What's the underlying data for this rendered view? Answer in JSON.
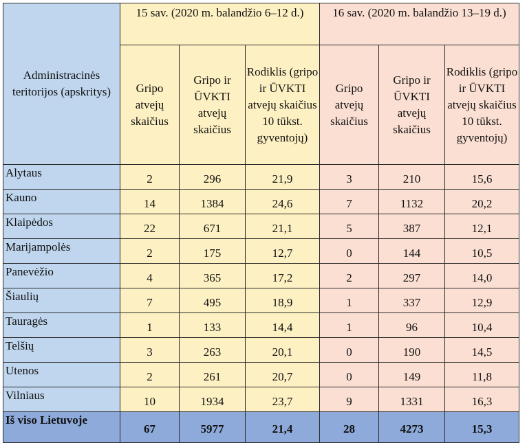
{
  "table": {
    "header": {
      "territory_label": "Administracinės teritorijos (apskritys)",
      "week15_title": "15 sav. (2020 m. balandžio 6–12 d.)",
      "week16_title": "16 sav. (2020 m. balandžio 13–19 d.)",
      "col_flu_cases": "Gripo atvejų skaičius",
      "col_flu_ari_cases": "Gripo ir ŪVKTI atvejų skaičius",
      "col_rate": "Rodiklis (gripo ir ŪVKTI atvejų skaičius 10 tūkst. gyventojų)"
    },
    "rows": [
      {
        "region": "Alytaus",
        "w15_flu": "2",
        "w15_total": "296",
        "w15_rate": "21,9",
        "w16_flu": "3",
        "w16_total": "210",
        "w16_rate": "15,6"
      },
      {
        "region": "Kauno",
        "w15_flu": "14",
        "w15_total": "1384",
        "w15_rate": "24,6",
        "w16_flu": "7",
        "w16_total": "1132",
        "w16_rate": "20,2"
      },
      {
        "region": "Klaipėdos",
        "w15_flu": "22",
        "w15_total": "671",
        "w15_rate": "21,1",
        "w16_flu": "5",
        "w16_total": "387",
        "w16_rate": "12,1"
      },
      {
        "region": "Marijampolės",
        "w15_flu": "2",
        "w15_total": "175",
        "w15_rate": "12,7",
        "w16_flu": "0",
        "w16_total": "144",
        "w16_rate": "10,5"
      },
      {
        "region": "Panevėžio",
        "w15_flu": "4",
        "w15_total": "365",
        "w15_rate": "17,2",
        "w16_flu": "2",
        "w16_total": "297",
        "w16_rate": "14,0"
      },
      {
        "region": "Šiaulių",
        "w15_flu": "7",
        "w15_total": "495",
        "w15_rate": "18,9",
        "w16_flu": "1",
        "w16_total": "337",
        "w16_rate": "12,9"
      },
      {
        "region": "Tauragės",
        "w15_flu": "1",
        "w15_total": "133",
        "w15_rate": "14,4",
        "w16_flu": "1",
        "w16_total": "96",
        "w16_rate": "10,4"
      },
      {
        "region": "Telšių",
        "w15_flu": "3",
        "w15_total": "263",
        "w15_rate": "20,1",
        "w16_flu": "0",
        "w16_total": "190",
        "w16_rate": "14,5"
      },
      {
        "region": "Utenos",
        "w15_flu": "2",
        "w15_total": "261",
        "w15_rate": "20,7",
        "w16_flu": "0",
        "w16_total": "149",
        "w16_rate": "11,8"
      },
      {
        "region": "Vilniaus",
        "w15_flu": "10",
        "w15_total": "1934",
        "w15_rate": "23,7",
        "w16_flu": "9",
        "w16_total": "1331",
        "w16_rate": "16,3"
      }
    ],
    "total": {
      "region": "Iš viso Lietuvoje",
      "w15_flu": "67",
      "w15_total": "5977",
      "w15_rate": "21,4",
      "w16_flu": "28",
      "w16_total": "4273",
      "w16_rate": "15,3"
    }
  },
  "colors": {
    "territory_bg": "#bfd6ee",
    "week15_bg": "#fdf0c2",
    "week16_bg": "#fbdfd3",
    "total_bg": "#8eaadb"
  }
}
